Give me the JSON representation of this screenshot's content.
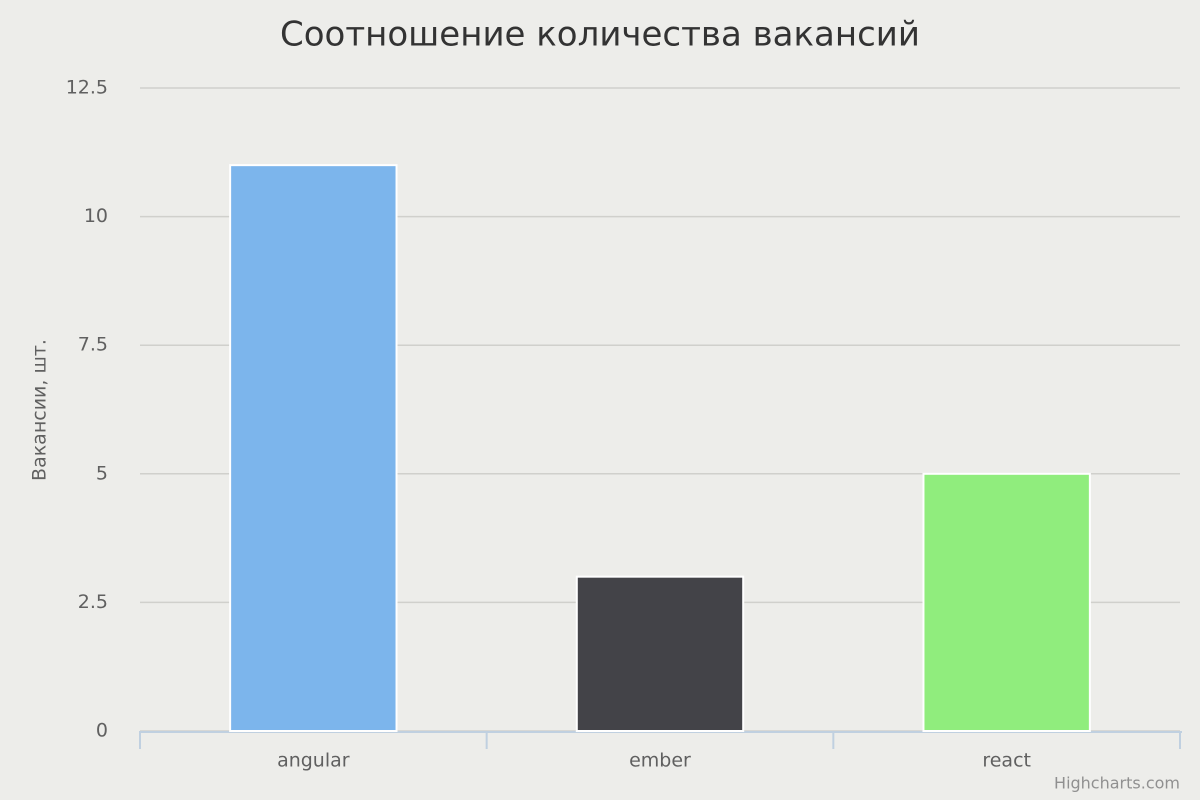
{
  "chart_data": {
    "type": "bar",
    "title": "Соотношение количества вакансий",
    "y_label": "Вакансии, шт.",
    "categories": [
      "angular",
      "ember",
      "react"
    ],
    "values": [
      11,
      3,
      5
    ],
    "colors": [
      "#7cb5ec",
      "#434348",
      "#90ed7d"
    ],
    "ylim": [
      0,
      12.5
    ],
    "yticks": [
      0,
      2.5,
      5,
      7.5,
      10,
      12.5
    ],
    "grid": true,
    "credits": "Highcharts.com"
  }
}
